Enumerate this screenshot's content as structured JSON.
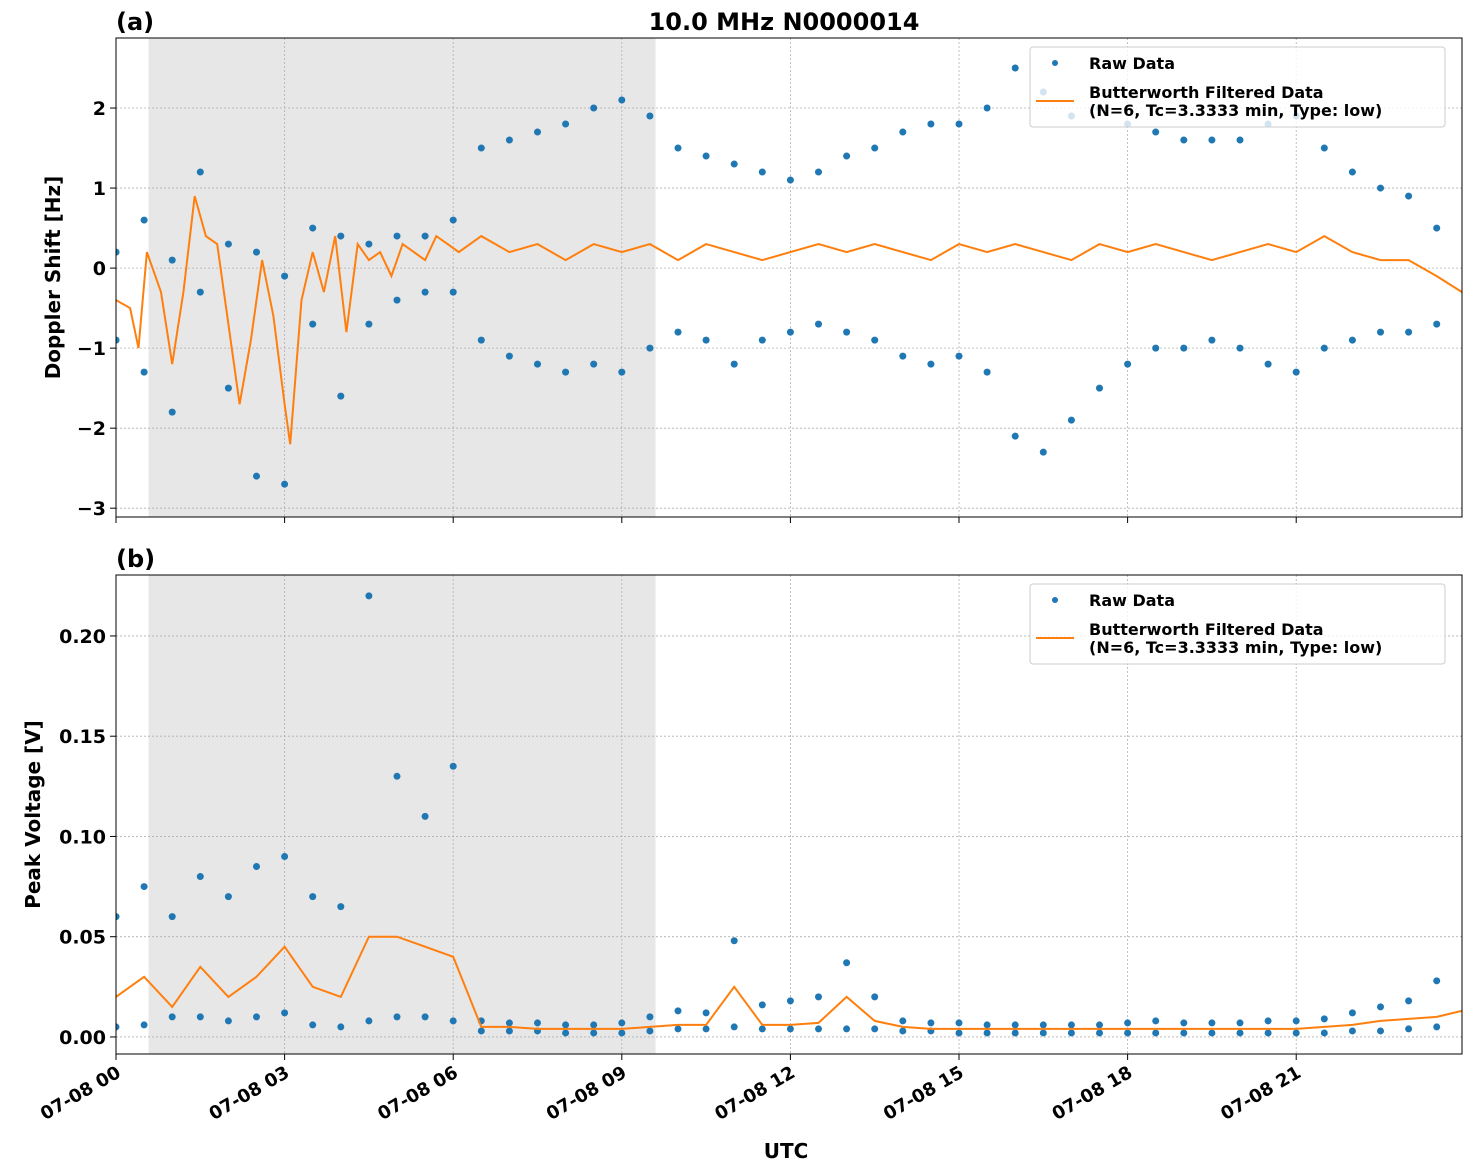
{
  "chart_data": [
    {
      "type": "scatter-line",
      "title": "10.0 MHz N0000014",
      "panel_label": "(a)",
      "ylabel": "Doppler Shift [Hz]",
      "xlim": [
        0,
        23.95
      ],
      "ylim": [
        -3.11,
        2.875
      ],
      "xticks": [
        0,
        3,
        6,
        9,
        12,
        15,
        18,
        21
      ],
      "yticks": [
        -3,
        -2,
        -1,
        0,
        1,
        2
      ],
      "yticks_labels": [
        "−3",
        "−2",
        "−1",
        "0",
        "1",
        "2"
      ],
      "shade": [
        0.58,
        9.6
      ],
      "grid": true,
      "legend": "upper right",
      "series": [
        {
          "name": "Raw Data",
          "kind": "points",
          "color": "#1f77b4",
          "x": [
            0,
            0,
            0.5,
            0.5,
            1,
            1,
            1.5,
            1.5,
            2,
            2,
            2.5,
            2.5,
            3,
            3,
            3.5,
            3.5,
            4,
            4,
            4.5,
            4.5,
            5,
            5,
            5.5,
            5.5,
            6,
            6,
            6.5,
            6.5,
            7,
            7,
            7.5,
            7.5,
            8,
            8,
            8.5,
            8.5,
            9,
            9,
            9.5,
            9.5,
            10,
            10,
            10.5,
            10.5,
            11,
            11,
            11.5,
            11.5,
            12,
            12,
            12.5,
            12.5,
            13,
            13,
            13.5,
            13.5,
            14,
            14,
            14.5,
            14.5,
            15,
            15,
            15.5,
            15.5,
            16,
            16,
            16.5,
            16.5,
            17,
            17,
            17.5,
            17.5,
            18,
            18,
            18.5,
            18.5,
            19,
            19,
            19.5,
            19.5,
            20,
            20,
            20.5,
            20.5,
            21,
            21,
            21.5,
            21.5,
            22,
            22,
            22.5,
            22.5,
            23,
            23,
            23.5,
            23.5
          ],
          "values": [
            0.2,
            -0.9,
            0.6,
            -1.3,
            0.1,
            -1.8,
            1.2,
            -0.3,
            0.3,
            -1.5,
            0.2,
            -2.6,
            -0.1,
            -2.7,
            0.5,
            -0.7,
            0.4,
            -1.6,
            0.3,
            -0.7,
            0.4,
            -0.4,
            0.4,
            -0.3,
            0.6,
            -0.3,
            1.5,
            -0.9,
            1.6,
            -1.1,
            1.7,
            -1.2,
            1.8,
            -1.3,
            2.0,
            -1.2,
            2.1,
            -1.3,
            1.9,
            -1.0,
            1.5,
            -0.8,
            1.4,
            -0.9,
            1.3,
            -1.2,
            1.2,
            -0.9,
            1.1,
            -0.8,
            1.2,
            -0.7,
            1.4,
            -0.8,
            1.5,
            -0.9,
            1.7,
            -1.1,
            1.8,
            -1.2,
            1.8,
            -1.1,
            2.0,
            -1.3,
            2.5,
            -2.1,
            2.2,
            -2.3,
            1.9,
            -1.9,
            2.0,
            -1.5,
            1.8,
            -1.2,
            1.7,
            -1.0,
            1.6,
            -1.0,
            1.6,
            -0.9,
            1.6,
            -1.0,
            1.8,
            -1.2,
            1.9,
            -1.3,
            1.5,
            -1.0,
            1.2,
            -0.9,
            1.0,
            -0.8,
            0.9,
            -0.8,
            0.5,
            -0.7
          ]
        },
        {
          "name": "Butterworth Filtered Data\n(N=6, Tc=3.3333 min, Type: low)",
          "kind": "line",
          "color": "#ff7f0e",
          "x": [
            0,
            0.25,
            0.4,
            0.55,
            0.8,
            1.0,
            1.2,
            1.4,
            1.6,
            1.8,
            2.0,
            2.2,
            2.4,
            2.6,
            2.8,
            3.0,
            3.1,
            3.3,
            3.5,
            3.7,
            3.9,
            4.1,
            4.3,
            4.5,
            4.7,
            4.9,
            5.1,
            5.3,
            5.5,
            5.7,
            5.9,
            6.1,
            6.5,
            7,
            7.5,
            8,
            8.5,
            9,
            9.5,
            10,
            10.5,
            11,
            11.5,
            12,
            12.5,
            13,
            13.5,
            14,
            14.5,
            15,
            15.5,
            16,
            16.5,
            17,
            17.5,
            18,
            18.5,
            19,
            19.5,
            20,
            20.5,
            21,
            21.5,
            22,
            22.5,
            23,
            23.5,
            23.95
          ],
          "values": [
            -0.4,
            -0.5,
            -1.0,
            0.2,
            -0.3,
            -1.2,
            -0.3,
            0.9,
            0.4,
            0.3,
            -0.7,
            -1.7,
            -0.9,
            0.1,
            -0.6,
            -1.7,
            -2.2,
            -0.4,
            0.2,
            -0.3,
            0.4,
            -0.8,
            0.3,
            0.1,
            0.2,
            -0.1,
            0.3,
            0.2,
            0.1,
            0.4,
            0.3,
            0.2,
            0.4,
            0.2,
            0.3,
            0.1,
            0.3,
            0.2,
            0.3,
            0.1,
            0.3,
            0.2,
            0.1,
            0.2,
            0.3,
            0.2,
            0.3,
            0.2,
            0.1,
            0.3,
            0.2,
            0.3,
            0.2,
            0.1,
            0.3,
            0.2,
            0.3,
            0.2,
            0.1,
            0.2,
            0.3,
            0.2,
            0.4,
            0.2,
            0.1,
            0.1,
            -0.1,
            -0.3
          ]
        }
      ]
    },
    {
      "type": "scatter-line",
      "panel_label": "(b)",
      "ylabel": "Peak Voltage [V]",
      "xlabel": "UTC",
      "xlim": [
        0,
        23.95
      ],
      "ylim": [
        -0.0085,
        0.2304
      ],
      "xticks": [
        {
          "value": 0,
          "label": "07-08 00"
        },
        {
          "value": 3,
          "label": "07-08 03"
        },
        {
          "value": 6,
          "label": "07-08 06"
        },
        {
          "value": 9,
          "label": "07-08 09"
        },
        {
          "value": 12,
          "label": "07-08 12"
        },
        {
          "value": 15,
          "label": "07-08 15"
        },
        {
          "value": 18,
          "label": "07-08 18"
        },
        {
          "value": 21,
          "label": "07-08 21"
        }
      ],
      "yticks": [
        {
          "value": 0,
          "label": "0.00"
        },
        {
          "value": 0.05,
          "label": "0.05"
        },
        {
          "value": 0.1,
          "label": "0.10"
        },
        {
          "value": 0.15,
          "label": "0.15"
        },
        {
          "value": 0.2,
          "label": "0.20"
        }
      ],
      "shade": [
        0.58,
        9.6
      ],
      "grid": true,
      "legend": "upper right",
      "series": [
        {
          "name": "Raw Data",
          "kind": "points",
          "color": "#1f77b4",
          "x": [
            0,
            0,
            0.5,
            0.5,
            1,
            1,
            1.5,
            1.5,
            2,
            2,
            2.5,
            2.5,
            3,
            3,
            3.5,
            3.5,
            4,
            4,
            4.5,
            4.5,
            5,
            5,
            5.5,
            5.5,
            6,
            6,
            6.5,
            6.5,
            7,
            7,
            7.5,
            7.5,
            8,
            8,
            8.5,
            8.5,
            9,
            9,
            9.5,
            9.5,
            10,
            10,
            10.5,
            10.5,
            11,
            11,
            11.5,
            11.5,
            12,
            12,
            12.5,
            12.5,
            13,
            13,
            13.5,
            13.5,
            14,
            14,
            14.5,
            14.5,
            15,
            15,
            15.5,
            15.5,
            16,
            16,
            16.5,
            16.5,
            17,
            17,
            17.5,
            17.5,
            18,
            18,
            18.5,
            18.5,
            19,
            19,
            19.5,
            19.5,
            20,
            20,
            20.5,
            20.5,
            21,
            21,
            21.5,
            21.5,
            22,
            22,
            22.5,
            22.5,
            23,
            23,
            23.5,
            23.5
          ],
          "values": [
            0.06,
            0.005,
            0.075,
            0.006,
            0.06,
            0.01,
            0.08,
            0.01,
            0.07,
            0.008,
            0.085,
            0.01,
            0.09,
            0.012,
            0.07,
            0.006,
            0.065,
            0.005,
            0.22,
            0.008,
            0.13,
            0.01,
            0.11,
            0.01,
            0.135,
            0.008,
            0.008,
            0.003,
            0.007,
            0.003,
            0.007,
            0.003,
            0.006,
            0.002,
            0.006,
            0.002,
            0.007,
            0.002,
            0.01,
            0.003,
            0.013,
            0.004,
            0.012,
            0.004,
            0.048,
            0.005,
            0.016,
            0.004,
            0.018,
            0.004,
            0.02,
            0.004,
            0.037,
            0.004,
            0.02,
            0.004,
            0.008,
            0.003,
            0.007,
            0.003,
            0.007,
            0.002,
            0.006,
            0.002,
            0.006,
            0.002,
            0.006,
            0.002,
            0.006,
            0.002,
            0.006,
            0.002,
            0.007,
            0.002,
            0.008,
            0.002,
            0.007,
            0.002,
            0.007,
            0.002,
            0.007,
            0.002,
            0.008,
            0.002,
            0.008,
            0.002,
            0.009,
            0.002,
            0.012,
            0.003,
            0.015,
            0.003,
            0.018,
            0.004,
            0.028,
            0.005
          ]
        },
        {
          "name": "Butterworth Filtered Data\n(N=6, Tc=3.3333 min, Type: low)",
          "kind": "line",
          "color": "#ff7f0e",
          "x": [
            0,
            0.5,
            1,
            1.5,
            2,
            2.5,
            3,
            3.5,
            4,
            4.5,
            5,
            5.5,
            6,
            6.5,
            7,
            7.5,
            8,
            8.5,
            9,
            9.5,
            10,
            10.5,
            11,
            11.5,
            12,
            12.5,
            13,
            13.5,
            14,
            14.5,
            15,
            15.5,
            16,
            16.5,
            17,
            17.5,
            18,
            18.5,
            19,
            19.5,
            20,
            20.5,
            21,
            21.5,
            22,
            22.5,
            23,
            23.5,
            23.95
          ],
          "values": [
            0.02,
            0.03,
            0.015,
            0.035,
            0.02,
            0.03,
            0.045,
            0.025,
            0.02,
            0.05,
            0.05,
            0.045,
            0.04,
            0.005,
            0.005,
            0.004,
            0.004,
            0.004,
            0.004,
            0.005,
            0.006,
            0.006,
            0.025,
            0.006,
            0.006,
            0.007,
            0.02,
            0.008,
            0.005,
            0.004,
            0.004,
            0.004,
            0.004,
            0.004,
            0.004,
            0.004,
            0.004,
            0.004,
            0.004,
            0.004,
            0.004,
            0.004,
            0.004,
            0.005,
            0.006,
            0.008,
            0.009,
            0.01,
            0.013
          ]
        }
      ]
    }
  ]
}
